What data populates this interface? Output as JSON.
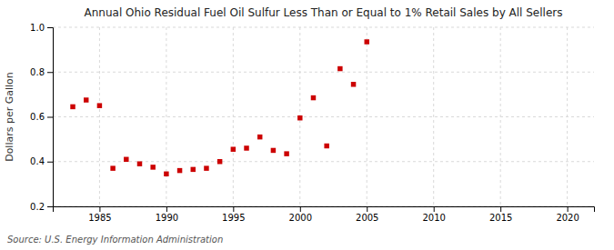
{
  "chart_data": {
    "type": "scatter",
    "title": "Annual Ohio Residual Fuel Oil Sulfur Less Than or Equal to 1% Retail Sales by All Sellers",
    "ylabel": "Dollars per Gallon",
    "source": "Source: U.S. Energy Information Administration",
    "color": "#cc0000",
    "marker": "square",
    "grid": true,
    "xlim": [
      1981.5,
      2022
    ],
    "ylim": [
      0.2,
      1.0
    ],
    "xticks": [
      1985,
      1990,
      1995,
      2000,
      2005,
      2010,
      2015,
      2020
    ],
    "yticks": [
      0.2,
      0.4,
      0.6,
      0.8,
      {
        "value": 1.0,
        "label": "1.0"
      }
    ],
    "x": [
      1983,
      1984,
      1985,
      1986,
      1987,
      1988,
      1989,
      1990,
      1991,
      1992,
      1993,
      1994,
      1995,
      1996,
      1997,
      1998,
      1999,
      2000,
      2001,
      2002,
      2003,
      2004,
      2005
    ],
    "values": [
      0.645,
      0.675,
      0.65,
      0.37,
      0.41,
      0.39,
      0.375,
      0.345,
      0.36,
      0.365,
      0.37,
      0.4,
      0.455,
      0.46,
      0.51,
      0.45,
      0.435,
      0.595,
      0.685,
      0.47,
      0.815,
      0.745,
      0.935
    ]
  }
}
